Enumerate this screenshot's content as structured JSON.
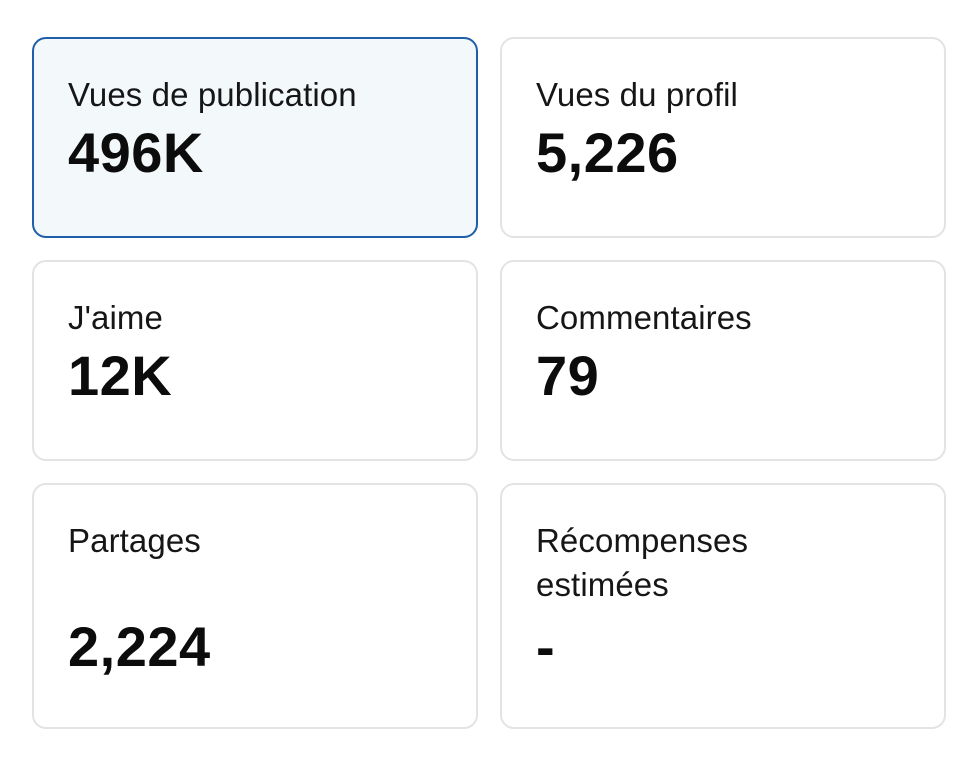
{
  "metrics": [
    {
      "label": "Vues de publication",
      "value": "496K",
      "selected": true
    },
    {
      "label": "Vues du profil",
      "value": "5,226"
    },
    {
      "label": "J'aime",
      "value": "12K"
    },
    {
      "label": "Commentaires",
      "value": "79"
    },
    {
      "label": "Partages",
      "value": "2,224"
    },
    {
      "label": "Récompenses estimées",
      "value": "-"
    }
  ],
  "colors": {
    "selected_border": "#1f5fa8",
    "selected_background": "#f3f8fb",
    "card_border": "#e3e3e3"
  }
}
